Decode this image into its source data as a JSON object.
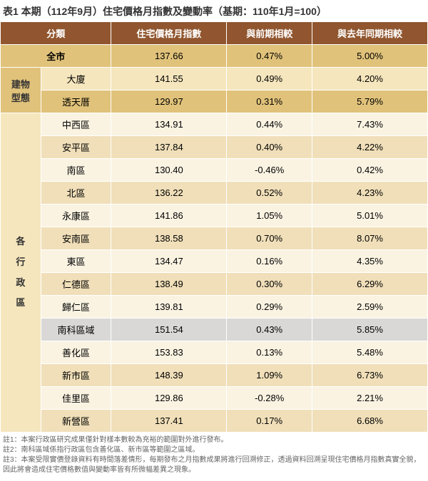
{
  "title": "表1 本期（112年9月）住宅價格月指數及變動率（基期：110年1月=100）",
  "headers": {
    "cat": "分類",
    "index_col": "住宅價格月指數",
    "mom": "與前期相較",
    "yoy": "與去年同期相較"
  },
  "group_labels": {
    "citywide": "全市",
    "building_type": "建物\n型態",
    "districts": "各\n行\n政\n區"
  },
  "building_types": [
    {
      "name": "大廈",
      "index": "141.55",
      "mom": "0.49%",
      "yoy": "4.20%"
    },
    {
      "name": "透天厝",
      "index": "129.97",
      "mom": "0.31%",
      "yoy": "5.79%"
    }
  ],
  "citywide": {
    "index": "137.66",
    "mom": "0.47%",
    "yoy": "5.00%"
  },
  "districts": [
    {
      "name": "中西區",
      "index": "134.91",
      "mom": "0.44%",
      "yoy": "7.43%"
    },
    {
      "name": "安平區",
      "index": "137.84",
      "mom": "0.40%",
      "yoy": "4.22%"
    },
    {
      "name": "南區",
      "index": "130.40",
      "mom": "-0.46%",
      "yoy": "0.42%"
    },
    {
      "name": "北區",
      "index": "136.22",
      "mom": "0.52%",
      "yoy": "4.23%"
    },
    {
      "name": "永康區",
      "index": "141.86",
      "mom": "1.05%",
      "yoy": "5.01%"
    },
    {
      "name": "安南區",
      "index": "138.58",
      "mom": "0.70%",
      "yoy": "8.07%"
    },
    {
      "name": "東區",
      "index": "134.47",
      "mom": "0.16%",
      "yoy": "4.35%"
    },
    {
      "name": "仁德區",
      "index": "138.49",
      "mom": "0.30%",
      "yoy": "6.29%"
    },
    {
      "name": "歸仁區",
      "index": "139.81",
      "mom": "0.29%",
      "yoy": "2.59%"
    },
    {
      "name": "南科區域",
      "index": "151.54",
      "mom": "0.43%",
      "yoy": "5.85%",
      "highlight": true
    },
    {
      "name": "善化區",
      "index": "153.83",
      "mom": "0.13%",
      "yoy": "5.48%"
    },
    {
      "name": "新市區",
      "index": "148.39",
      "mom": "1.09%",
      "yoy": "6.73%"
    },
    {
      "name": "佳里區",
      "index": "129.86",
      "mom": "-0.28%",
      "yoy": "2.21%"
    },
    {
      "name": "新營區",
      "index": "137.41",
      "mom": "0.17%",
      "yoy": "6.68%"
    }
  ],
  "footnotes": [
    "註1：本案行政區研究成果僅針對樣本數較為充裕的範圍對外進行發布。",
    "註2：南科區域係指行政區包含善化區、新市區等範圍之區域。",
    "註3：本案受限實價登錄資料有時間落差情形，每期發布之月指數成果將進行回溯修正，透過資料回溯呈現住宅價格月指數真實全貌，因此將會造成住宅價格數值與變動率皆有所微幅差異之現象。"
  ],
  "colors": {
    "header_bg": "#91562f",
    "header_fg": "#ffffff",
    "gold_dark": "#e0c27a",
    "gold_light": "#f5e6bd",
    "beige_dark": "#f0dfb9",
    "beige_light": "#faf3e2",
    "gray_highlight": "#d9d8d6",
    "text": "#333333",
    "footnote_text": "#666666",
    "border": "#ffffff"
  }
}
